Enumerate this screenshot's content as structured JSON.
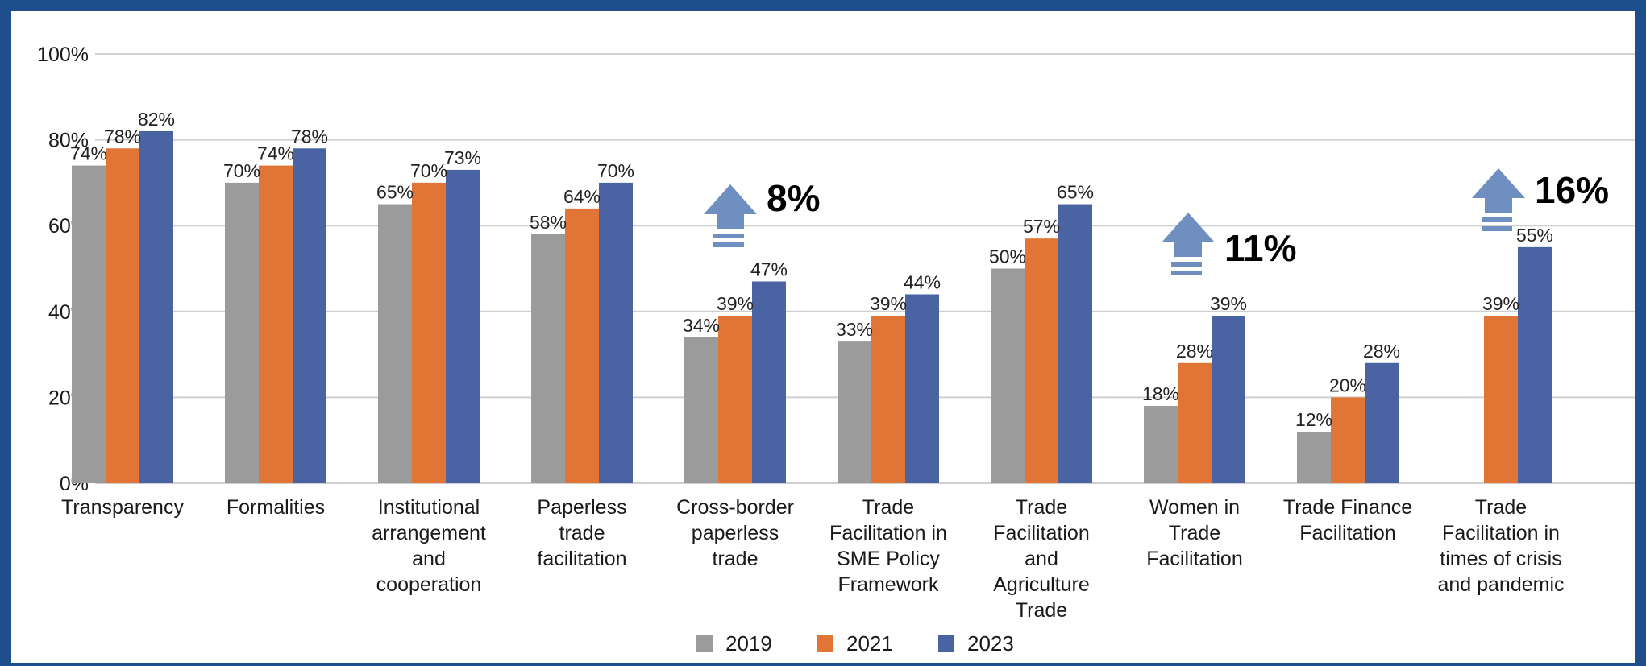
{
  "chart_data": {
    "type": "bar",
    "title": "",
    "xlabel": "",
    "ylabel": "",
    "ylim": [
      0,
      100
    ],
    "y_ticks": [
      "0%",
      "20%",
      "40%",
      "60%",
      "80%",
      "100%"
    ],
    "grid": true,
    "legend_position": "bottom",
    "categories": [
      "Transparency",
      "Formalities",
      "Institutional arrangement and cooperation",
      "Paperless trade facilitation",
      "Cross-border paperless trade",
      "Trade Facilitation in SME Policy Framework",
      "Trade Facilitation and Agriculture Trade",
      "Women in Trade Facilitation",
      "Trade Finance Facilitation",
      "Trade Facilitation in times of crisis and pandemic"
    ],
    "category_lines": [
      [
        "Transparency"
      ],
      [
        "Formalities"
      ],
      [
        "Institutional",
        "arrangement",
        "and",
        "cooperation"
      ],
      [
        "Paperless",
        "trade",
        "facilitation"
      ],
      [
        "Cross-border",
        "paperless",
        "trade"
      ],
      [
        "Trade",
        "Facilitation in",
        "SME Policy",
        "Framework"
      ],
      [
        "Trade",
        "Facilitation",
        "and",
        "Agriculture",
        "Trade"
      ],
      [
        "Women in",
        "Trade",
        "Facilitation"
      ],
      [
        "Trade Finance",
        "Facilitation"
      ],
      [
        "Trade",
        "Facilitation in",
        "times of crisis",
        "and pandemic"
      ]
    ],
    "series": [
      {
        "name": "2019",
        "color": "#9b9b9b",
        "values": [
          74,
          70,
          65,
          58,
          34,
          33,
          50,
          18,
          12,
          null
        ]
      },
      {
        "name": "2021",
        "color": "#e07535",
        "values": [
          78,
          74,
          70,
          64,
          39,
          39,
          57,
          28,
          20,
          39
        ]
      },
      {
        "name": "2023",
        "color": "#4a64a3",
        "values": [
          82,
          78,
          73,
          70,
          47,
          44,
          65,
          39,
          28,
          55
        ]
      }
    ],
    "data_labels": [
      [
        "74%",
        "78%",
        "82%"
      ],
      [
        "70%",
        "74%",
        "78%"
      ],
      [
        "65%",
        "70%",
        "73%"
      ],
      [
        "58%",
        "64%",
        "70%"
      ],
      [
        "34%",
        "39%",
        "47%"
      ],
      [
        "33%",
        "39%",
        "44%"
      ],
      [
        "50%",
        "57%",
        "65%"
      ],
      [
        "18%",
        "28%",
        "39%"
      ],
      [
        "12%",
        "20%",
        "28%"
      ],
      [
        null,
        "39%",
        "55%"
      ]
    ],
    "annotations": [
      {
        "category_index": 4,
        "text": "8%",
        "icon": "up-arrow-icon"
      },
      {
        "category_index": 7,
        "text": "11%",
        "icon": "up-arrow-icon"
      },
      {
        "category_index": 9,
        "text": "16%",
        "icon": "up-arrow-icon"
      }
    ]
  },
  "colors": {
    "frame": "#1f4e8c",
    "grid": "#cfcfcf",
    "arrow": "#6e8fbf"
  }
}
